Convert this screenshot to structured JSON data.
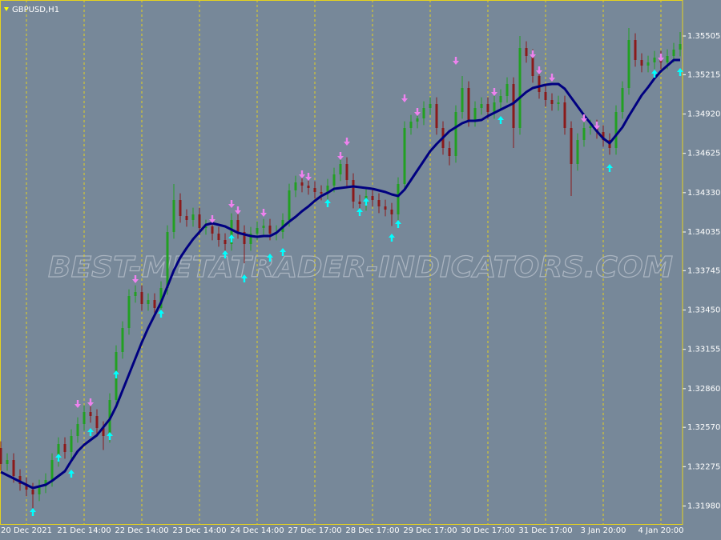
{
  "chart_data": {
    "type": "candlestick",
    "title": "GBPUSD,H1",
    "watermark": "BEST-METATRADER-INDICATORS.COM",
    "background": "#778899",
    "bull_color": "#22a022",
    "bear_color": "#8b1a1a",
    "grid": true,
    "grid_color": "#e6d21e",
    "categories": [
      null,
      null,
      null,
      null,
      "20 Dec 2021",
      null,
      null,
      null,
      null,
      null,
      null,
      null,
      null,
      "21 Dec 14:00",
      null,
      null,
      null,
      null,
      null,
      null,
      null,
      null,
      "22 Dec 14:00",
      null,
      null,
      null,
      null,
      null,
      null,
      null,
      null,
      "23 Dec 14:00",
      null,
      null,
      null,
      null,
      null,
      null,
      null,
      null,
      "24 Dec 14:00",
      null,
      null,
      null,
      null,
      null,
      null,
      null,
      null,
      "27 Dec 17:00",
      null,
      null,
      null,
      null,
      null,
      null,
      null,
      null,
      "28 Dec 17:00",
      null,
      null,
      null,
      null,
      null,
      null,
      null,
      null,
      "29 Dec 17:00",
      null,
      null,
      null,
      null,
      null,
      null,
      null,
      null,
      "30 Dec 17:00",
      null,
      null,
      null,
      null,
      null,
      null,
      null,
      null,
      "31 Dec 17:00",
      null,
      null,
      null,
      null,
      null,
      null,
      null,
      null,
      "3 Jan 20:00",
      null,
      null,
      null,
      null,
      null,
      null,
      null,
      null,
      "4 Jan 20:00",
      null,
      null,
      null
    ],
    "open": [
      1.32415,
      1.32295,
      1.32325,
      1.32205,
      1.32145,
      1.32103,
      1.32067,
      1.32127,
      1.32175,
      1.32325,
      1.32445,
      1.32385,
      1.32505,
      1.32595,
      1.32685,
      1.32655,
      1.32565,
      1.32505,
      1.32775,
      1.33135,
      1.33315,
      1.33555,
      1.33585,
      1.33495,
      1.33525,
      1.33465,
      1.33615,
      1.34035,
      1.34275,
      1.34155,
      1.34125,
      1.34167,
      1.34065,
      1.34077,
      1.34023,
      1.33975,
      1.33945,
      1.34125,
      1.34035,
      1.33945,
      1.34023,
      1.34065,
      1.34083,
      1.34023,
      1.34035,
      1.34125,
      1.34347,
      1.34407,
      1.34383,
      1.34365,
      1.34335,
      1.34323,
      1.34383,
      1.34467,
      1.34545,
      1.34425,
      1.34263,
      1.34245,
      1.34305,
      1.34275,
      1.34227,
      1.34203,
      1.34167,
      1.34395,
      1.34815,
      1.34863,
      1.34887,
      1.34965,
      1.34995,
      1.34815,
      1.34665,
      1.34605,
      1.34935,
      1.35115,
      1.34875,
      1.34965,
      1.34995,
      1.34935,
      1.35007,
      1.35055,
      1.35145,
      1.34815,
      1.35415,
      1.35355,
      1.35205,
      1.35085,
      1.35025,
      1.34995,
      1.35007,
      1.34815,
      1.34545,
      1.34725,
      1.34815,
      1.34827,
      1.34785,
      1.34725,
      1.34665,
      1.34935,
      1.35115,
      1.35475,
      1.35325,
      1.35283,
      1.35307,
      1.35343,
      1.35307,
      1.35355,
      1.35403
    ],
    "high": [
      1.32465,
      1.32375,
      1.32375,
      1.32255,
      1.32195,
      1.32153,
      1.32177,
      1.32225,
      1.32375,
      1.32495,
      1.32495,
      1.32555,
      1.32645,
      1.32735,
      1.32735,
      1.32705,
      1.32615,
      1.32825,
      1.33185,
      1.33365,
      1.33605,
      1.33635,
      1.33635,
      1.33575,
      1.33575,
      1.33665,
      1.34085,
      1.34395,
      1.34325,
      1.34205,
      1.34217,
      1.34217,
      1.34127,
      1.34127,
      1.34073,
      1.34025,
      1.34175,
      1.34175,
      1.34085,
      1.34073,
      1.34115,
      1.34133,
      1.34133,
      1.34085,
      1.34175,
      1.34397,
      1.34457,
      1.34457,
      1.34433,
      1.34415,
      1.34385,
      1.34433,
      1.34517,
      1.34595,
      1.34595,
      1.34475,
      1.34313,
      1.34355,
      1.34355,
      1.34325,
      1.34277,
      1.34253,
      1.34445,
      1.34865,
      1.34913,
      1.34937,
      1.35015,
      1.35045,
      1.35045,
      1.34865,
      1.34715,
      1.34985,
      1.35205,
      1.35165,
      1.35015,
      1.35045,
      1.35045,
      1.35057,
      1.35105,
      1.35195,
      1.35195,
      1.35505,
      1.35465,
      1.35405,
      1.35255,
      1.35135,
      1.35075,
      1.35057,
      1.35057,
      1.34865,
      1.34775,
      1.34865,
      1.34877,
      1.34877,
      1.34835,
      1.34775,
      1.34985,
      1.35165,
      1.35565,
      1.35525,
      1.35375,
      1.35357,
      1.35393,
      1.35393,
      1.35405,
      1.35453,
      1.35535
    ],
    "low": [
      1.32245,
      1.32245,
      1.32155,
      1.32095,
      1.32053,
      1.3195,
      1.32017,
      1.32077,
      1.32125,
      1.32275,
      1.32335,
      1.32335,
      1.32455,
      1.32545,
      1.32605,
      1.32515,
      1.324,
      1.32455,
      1.32725,
      1.33085,
      1.33265,
      1.33505,
      1.33445,
      1.33445,
      1.33415,
      1.33415,
      1.33565,
      1.33985,
      1.34105,
      1.34075,
      1.34075,
      1.34015,
      1.34015,
      1.33973,
      1.33925,
      1.33895,
      1.33895,
      1.33985,
      1.338,
      1.33895,
      1.33973,
      1.34015,
      1.33973,
      1.33973,
      1.33985,
      1.34075,
      1.34297,
      1.34333,
      1.34315,
      1.34285,
      1.34273,
      1.34273,
      1.34333,
      1.34417,
      1.34375,
      1.34213,
      1.34195,
      1.34195,
      1.34225,
      1.34177,
      1.34153,
      1.3408,
      1.34117,
      1.34345,
      1.34765,
      1.34813,
      1.34837,
      1.34915,
      1.34765,
      1.34615,
      1.34535,
      1.34555,
      1.34885,
      1.34825,
      1.34825,
      1.34915,
      1.34885,
      1.34885,
      1.34957,
      1.35005,
      1.34665,
      1.34765,
      1.35305,
      1.35155,
      1.35035,
      1.34975,
      1.34945,
      1.34945,
      1.34765,
      1.34305,
      1.34495,
      1.34675,
      1.34765,
      1.34735,
      1.34675,
      1.34615,
      1.34615,
      1.34885,
      1.35065,
      1.35275,
      1.35233,
      1.35233,
      1.35257,
      1.35257,
      1.35257,
      1.35305,
      1.35353
    ],
    "close": [
      1.32295,
      1.32325,
      1.32205,
      1.32145,
      1.32103,
      1.32067,
      1.32127,
      1.32175,
      1.32325,
      1.32445,
      1.32385,
      1.32505,
      1.32595,
      1.32685,
      1.32655,
      1.32565,
      1.32505,
      1.32775,
      1.33135,
      1.33315,
      1.33555,
      1.33585,
      1.33495,
      1.33525,
      1.33465,
      1.33615,
      1.34035,
      1.34275,
      1.34155,
      1.34125,
      1.34167,
      1.34065,
      1.34077,
      1.34023,
      1.33975,
      1.33945,
      1.34125,
      1.34035,
      1.33945,
      1.34023,
      1.34065,
      1.34083,
      1.34023,
      1.34035,
      1.34125,
      1.34347,
      1.34407,
      1.34383,
      1.34365,
      1.34335,
      1.34323,
      1.34383,
      1.34467,
      1.34545,
      1.34425,
      1.34263,
      1.34245,
      1.34305,
      1.34275,
      1.34227,
      1.34203,
      1.34167,
      1.34395,
      1.34815,
      1.34863,
      1.34887,
      1.34965,
      1.34995,
      1.34815,
      1.34665,
      1.34605,
      1.34935,
      1.35115,
      1.34875,
      1.34965,
      1.34995,
      1.34935,
      1.35007,
      1.35055,
      1.35145,
      1.34815,
      1.35415,
      1.35355,
      1.35205,
      1.35085,
      1.35025,
      1.34995,
      1.35007,
      1.34815,
      1.34545,
      1.34725,
      1.34815,
      1.34827,
      1.34785,
      1.34725,
      1.34665,
      1.34935,
      1.35115,
      1.35475,
      1.35325,
      1.35283,
      1.35307,
      1.35343,
      1.35307,
      1.35355,
      1.35403,
      1.35445
    ],
    "ma": {
      "color": "#000080",
      "values": [
        1.32235,
        1.32211,
        1.32187,
        1.32163,
        1.32139,
        1.32115,
        1.32127,
        1.32139,
        1.32169,
        1.32205,
        1.32241,
        1.32319,
        1.32391,
        1.32439,
        1.32475,
        1.32511,
        1.32571,
        1.32631,
        1.32727,
        1.32847,
        1.32967,
        1.33087,
        1.33207,
        1.33315,
        1.33411,
        1.33507,
        1.33627,
        1.33747,
        1.33843,
        1.33915,
        1.33981,
        1.34035,
        1.34089,
        1.34101,
        1.34089,
        1.34077,
        1.34053,
        1.34029,
        1.34017,
        1.34005,
        1.33999,
        1.34005,
        1.34005,
        1.34029,
        1.34071,
        1.34113,
        1.34149,
        1.34191,
        1.34227,
        1.34269,
        1.34305,
        1.34329,
        1.34359,
        1.34365,
        1.34371,
        1.34377,
        1.34371,
        1.34365,
        1.34359,
        1.34347,
        1.34335,
        1.34317,
        1.34305,
        1.34353,
        1.34425,
        1.34497,
        1.34569,
        1.34641,
        1.34695,
        1.34743,
        1.34791,
        1.34821,
        1.34851,
        1.34869,
        1.34869,
        1.34875,
        1.34905,
        1.34929,
        1.34953,
        1.34977,
        1.35001,
        1.35043,
        1.35085,
        1.35115,
        1.35127,
        1.35139,
        1.35145,
        1.35145,
        1.35109,
        1.35043,
        1.34977,
        1.34911,
        1.34851,
        1.34791,
        1.34737,
        1.34701,
        1.34761,
        1.34821,
        1.34905,
        1.34983,
        1.35061,
        1.35121,
        1.35187,
        1.35241,
        1.35283,
        1.35325,
        1.35325
      ]
    },
    "up_arrows": {
      "color": "#00ffff",
      "values": [
        null,
        null,
        null,
        null,
        null,
        1.31935,
        null,
        null,
        null,
        1.32343,
        null,
        1.32223,
        null,
        null,
        1.32535,
        null,
        null,
        1.32505,
        1.32967,
        null,
        null,
        null,
        null,
        null,
        null,
        1.33423,
        null,
        null,
        null,
        null,
        null,
        null,
        null,
        null,
        null,
        1.33867,
        1.33987,
        null,
        1.33687,
        null,
        null,
        null,
        1.33843,
        null,
        1.33885,
        null,
        null,
        null,
        null,
        null,
        null,
        1.34251,
        null,
        null,
        null,
        null,
        1.34185,
        1.34263,
        null,
        null,
        null,
        1.33993,
        1.34095,
        null,
        null,
        null,
        null,
        null,
        null,
        null,
        null,
        null,
        null,
        null,
        null,
        null,
        null,
        null,
        1.34875,
        null,
        null,
        null,
        null,
        null,
        null,
        null,
        null,
        null,
        null,
        null,
        null,
        null,
        null,
        null,
        null,
        1.34515,
        null,
        null,
        null,
        null,
        null,
        null,
        1.35223,
        null,
        null,
        null,
        1.35235
      ]
    },
    "down_arrows": {
      "color": "#ee82ee",
      "values": [
        null,
        null,
        null,
        null,
        null,
        null,
        null,
        null,
        null,
        null,
        null,
        null,
        1.32745,
        null,
        1.32757,
        null,
        null,
        null,
        null,
        null,
        null,
        1.33681,
        null,
        null,
        null,
        null,
        null,
        null,
        null,
        null,
        null,
        null,
        null,
        1.34131,
        null,
        null,
        1.34245,
        1.34197,
        null,
        null,
        null,
        1.34179,
        null,
        null,
        null,
        null,
        null,
        1.34467,
        1.34449,
        null,
        null,
        null,
        null,
        1.34605,
        1.34713,
        null,
        null,
        null,
        null,
        null,
        null,
        null,
        null,
        1.35037,
        null,
        1.34935,
        null,
        null,
        null,
        null,
        null,
        1.35319,
        null,
        null,
        null,
        null,
        null,
        1.35085,
        null,
        null,
        null,
        null,
        null,
        1.35367,
        1.35247,
        null,
        1.35193,
        null,
        null,
        null,
        null,
        1.34887,
        null,
        1.34833,
        null,
        null,
        null,
        null,
        null,
        null,
        null,
        null,
        null,
        1.35343,
        null,
        null,
        null
      ]
    },
    "ylim": [
      1.31845,
      1.35775
    ],
    "yticks": [
      1.35505,
      1.35215,
      {
        "value": 1.3492,
        "label": "1.34920"
      },
      1.34625,
      {
        "value": 1.3433,
        "label": "1.34330"
      },
      1.34035,
      1.33745,
      {
        "value": 1.3345,
        "label": "1.33450"
      },
      1.33155,
      {
        "value": 1.3286,
        "label": "1.32860"
      },
      {
        "value": 1.3257,
        "label": "1.32570"
      },
      1.32275,
      {
        "value": 1.3198,
        "label": "1.31980"
      }
    ]
  }
}
